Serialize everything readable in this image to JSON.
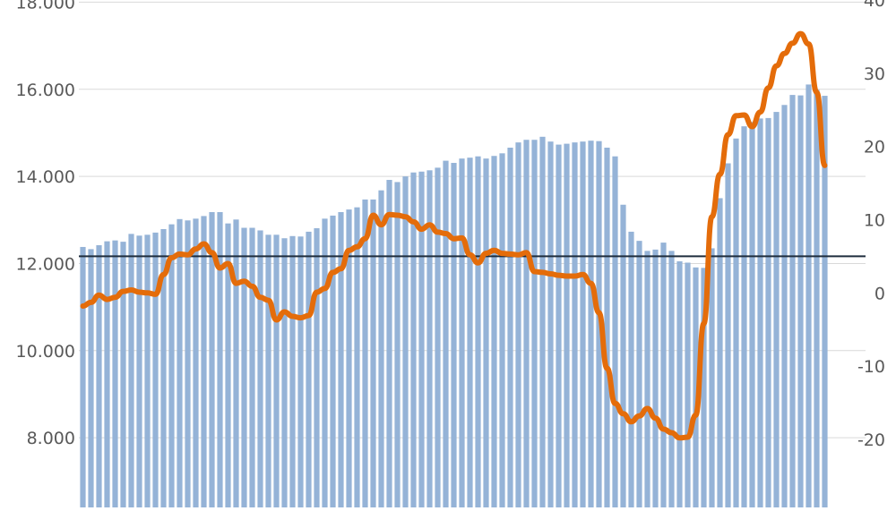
{
  "colors": {
    "bars": "#95b3d7",
    "line": "#e46c0a",
    "reference_line": "#1f2d3d",
    "gridline": "#d9d9d9",
    "tick_text": "#595959"
  },
  "chart_data": {
    "type": "bar",
    "title": "",
    "xlabel": "",
    "ylabel": "",
    "y_left": {
      "ticks": [
        "8.000",
        "10.000",
        "12.000",
        "14.000",
        "16.000",
        "18.000"
      ],
      "tick_values": [
        8000,
        10000,
        12000,
        14000,
        16000,
        18000
      ],
      "range": [
        6400,
        18050
      ]
    },
    "y_right": {
      "ticks": [
        "-20",
        "-10",
        "0",
        "10",
        "20",
        "30",
        "40"
      ],
      "tick_values": [
        -20,
        -10,
        0,
        10,
        20,
        30,
        40
      ],
      "range": [
        -29.3,
        40
      ]
    },
    "grid": true,
    "legend": "none",
    "reference_line": {
      "axis": "right",
      "value": 5
    },
    "series": [
      {
        "type": "bar",
        "axis": "left",
        "values": [
          12380,
          12330,
          12420,
          12510,
          12530,
          12500,
          12680,
          12640,
          12660,
          12710,
          12790,
          12900,
          13020,
          12990,
          13030,
          13090,
          13180,
          13180,
          12920,
          13010,
          12820,
          12820,
          12760,
          12660,
          12660,
          12580,
          12630,
          12620,
          12730,
          12810,
          13030,
          13100,
          13180,
          13240,
          13290,
          13470,
          13470,
          13680,
          13920,
          13870,
          14000,
          14090,
          14110,
          14140,
          14200,
          14360,
          14310,
          14410,
          14430,
          14460,
          14410,
          14470,
          14530,
          14660,
          14780,
          14840,
          14840,
          14910,
          14800,
          14730,
          14750,
          14780,
          14800,
          14820,
          14810,
          14660,
          14460,
          13350,
          12730,
          12520,
          12290,
          12320,
          12480,
          12290,
          12050,
          12020,
          11910,
          11900,
          12350,
          13500,
          14300,
          14870,
          15150,
          15250,
          15330,
          15340,
          15480,
          15640,
          15870,
          15860,
          16110,
          15990,
          15850
        ]
      },
      {
        "type": "line",
        "axis": "right",
        "values": [
          -1.8,
          -1.3,
          -0.3,
          -0.9,
          -0.6,
          0.2,
          0.4,
          0.1,
          0.0,
          -0.2,
          2.5,
          4.8,
          5.3,
          5.2,
          6.0,
          6.7,
          5.5,
          3.4,
          4.0,
          1.3,
          1.6,
          0.9,
          -0.6,
          -1.0,
          -3.7,
          -2.6,
          -3.2,
          -3.4,
          -3.1,
          0.1,
          0.6,
          2.8,
          3.3,
          5.8,
          6.3,
          7.4,
          10.6,
          9.3,
          10.7,
          10.6,
          10.4,
          9.7,
          8.7,
          9.3,
          8.3,
          8.1,
          7.4,
          7.5,
          5.2,
          4.1,
          5.4,
          5.8,
          5.4,
          5.3,
          5.2,
          5.5,
          2.9,
          2.8,
          2.6,
          2.4,
          2.3,
          2.3,
          2.5,
          1.3,
          -2.7,
          -10.3,
          -15.1,
          -16.5,
          -17.6,
          -16.8,
          -15.8,
          -17.1,
          -18.6,
          -19.1,
          -19.8,
          -19.7,
          -16.7,
          -4.2,
          10.4,
          16.2,
          21.6,
          24.2,
          24.3,
          22.7,
          24.7,
          28.0,
          31.0,
          32.7,
          34.1,
          35.4,
          34.0,
          27.4,
          17.4
        ]
      }
    ]
  }
}
